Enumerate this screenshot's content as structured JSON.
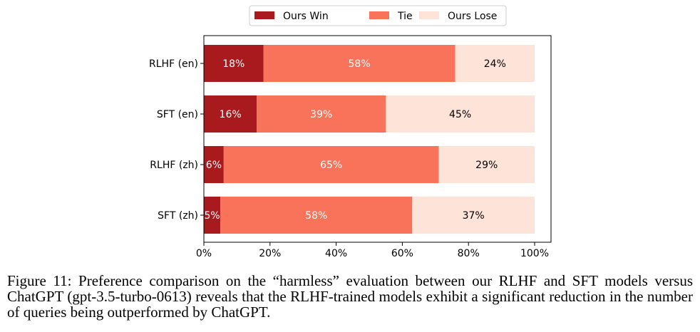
{
  "chart_data": {
    "type": "bar",
    "orientation": "horizontal",
    "stacked": true,
    "categories": [
      "RLHF (en)",
      "SFT (en)",
      "RLHF (zh)",
      "SFT (zh)"
    ],
    "series": [
      {
        "name": "Ours Win",
        "values": [
          18,
          16,
          6,
          5
        ],
        "color": "#a81a1d"
      },
      {
        "name": "Tie",
        "values": [
          58,
          39,
          65,
          58
        ],
        "color": "#f8735a"
      },
      {
        "name": "Ours Lose",
        "values": [
          24,
          45,
          29,
          37
        ],
        "color": "#fde3d8"
      }
    ],
    "value_labels": [
      [
        "18%",
        "58%",
        "24%"
      ],
      [
        "16%",
        "39%",
        "45%"
      ],
      [
        "6%",
        "65%",
        "29%"
      ],
      [
        "5%",
        "58%",
        "37%"
      ]
    ],
    "xticks": [
      "0%",
      "20%",
      "40%",
      "60%",
      "80%",
      "100%"
    ],
    "xlim": [
      0,
      100
    ],
    "legend_position": "top-center",
    "grid": false
  },
  "caption": {
    "label": "Figure 11:",
    "text": "Preference comparison on the “harmless” evaluation between our RLHF and SFT models versus ChatGPT (gpt-3.5-turbo-0613) reveals that the RLHF-trained models exhibit a significant reduction in the number of queries being outperformed by ChatGPT."
  }
}
